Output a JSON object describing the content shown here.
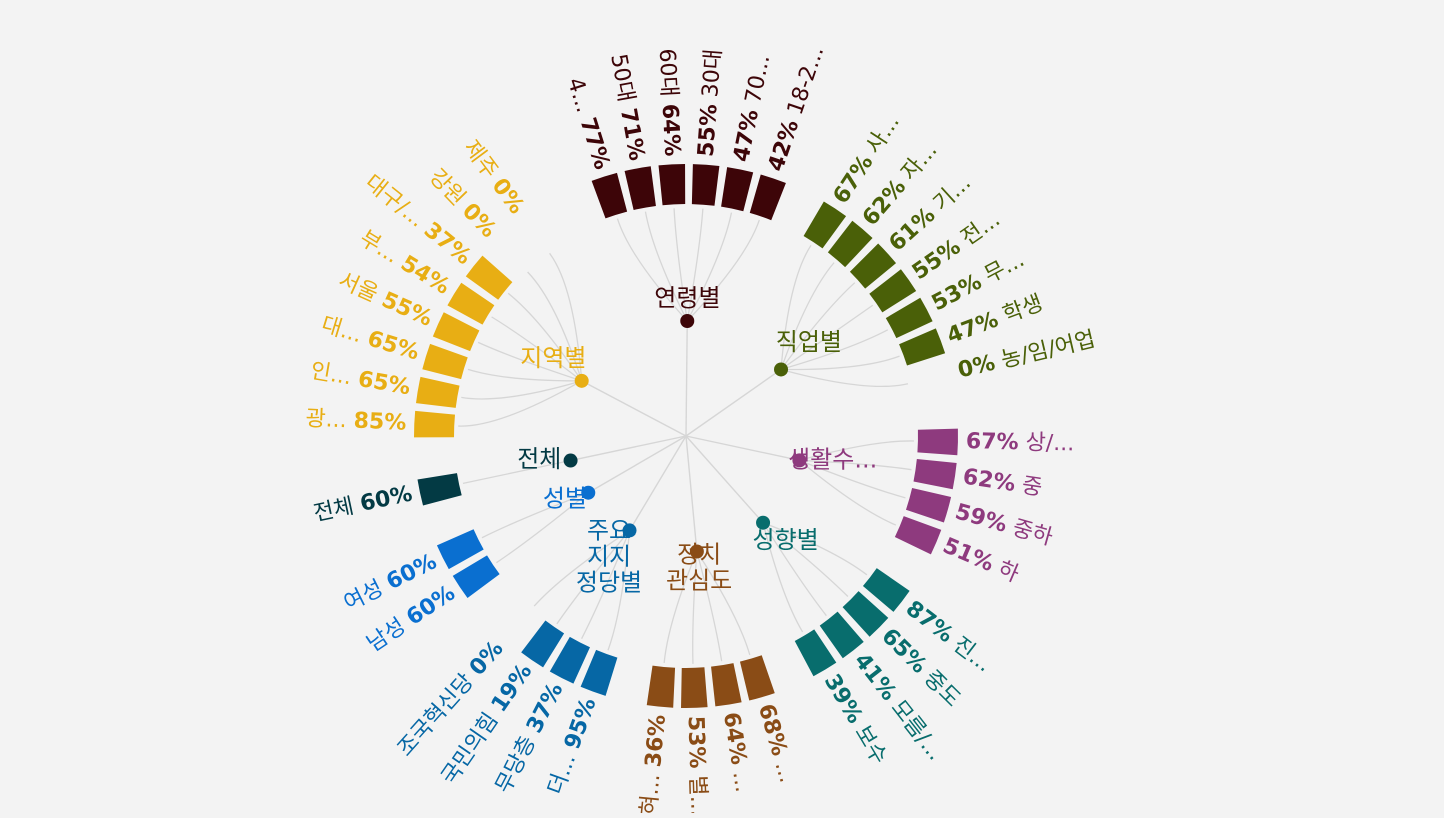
{
  "chart_data": {
    "type": "radial-bar",
    "value_unit": "%",
    "grid": false,
    "groups": [
      {
        "key": "age",
        "name": "연령별",
        "color": "#3d0508",
        "items": [
          {
            "label": "4...",
            "value": 77
          },
          {
            "label": "50대",
            "value": 71
          },
          {
            "label": "60대",
            "value": 64
          },
          {
            "label": "30대",
            "value": 55
          },
          {
            "label": "70...",
            "value": 47
          },
          {
            "label": "18-2...",
            "value": 42
          }
        ]
      },
      {
        "key": "job",
        "name": "직업별",
        "color": "#4a6008",
        "items": [
          {
            "label": "사...",
            "value": 67
          },
          {
            "label": "자...",
            "value": 62
          },
          {
            "label": "기...",
            "value": 61
          },
          {
            "label": "전...",
            "value": 55
          },
          {
            "label": "무...",
            "value": 53
          },
          {
            "label": "학생",
            "value": 47
          },
          {
            "label": "농/임/어업",
            "value": 0
          }
        ]
      },
      {
        "key": "living",
        "name": "생활수...",
        "color": "#8e3a7e",
        "items": [
          {
            "label": "상/...",
            "value": 67
          },
          {
            "label": "중",
            "value": 62
          },
          {
            "label": "중하",
            "value": 59
          },
          {
            "label": "하",
            "value": 51
          }
        ]
      },
      {
        "key": "ideology",
        "name": "성향별",
        "color": "#086d6d",
        "items": [
          {
            "label": "진...",
            "value": 87
          },
          {
            "label": "중도",
            "value": 65
          },
          {
            "label": "모름/...",
            "value": 41
          },
          {
            "label": "보수",
            "value": 39
          }
        ]
      },
      {
        "key": "interest",
        "name": "정치\n관심도",
        "color": "#8a4c16",
        "items": [
          {
            "label": "...",
            "value": 68
          },
          {
            "label": "...",
            "value": 64
          },
          {
            "label": "별...",
            "value": 53
          },
          {
            "label": "전혀...",
            "value": 36
          }
        ]
      },
      {
        "key": "party",
        "name": "주요\n지지\n정당별",
        "color": "#0667a5",
        "items": [
          {
            "label": "더...",
            "value": 95
          },
          {
            "label": "무당층",
            "value": 37
          },
          {
            "label": "국민의힘",
            "value": 19
          },
          {
            "label": "조국혁신당",
            "value": 0
          }
        ]
      },
      {
        "key": "gender",
        "name": "성별",
        "color": "#0a6fd0",
        "items": [
          {
            "label": "남성",
            "value": 60
          },
          {
            "label": "여성",
            "value": 60
          }
        ]
      },
      {
        "key": "total",
        "name": "전체",
        "color": "#033a44",
        "items": [
          {
            "label": "전체",
            "value": 60
          }
        ]
      },
      {
        "key": "region",
        "name": "지역별",
        "color": "#e8ae14",
        "items": [
          {
            "label": "광...",
            "value": 85
          },
          {
            "label": "인...",
            "value": 65
          },
          {
            "label": "대...",
            "value": 65
          },
          {
            "label": "서울",
            "value": 55
          },
          {
            "label": "부...",
            "value": 54
          },
          {
            "label": "대구/...",
            "value": 37
          },
          {
            "label": "강원",
            "value": 0
          },
          {
            "label": "제주",
            "value": 0
          }
        ]
      }
    ]
  }
}
